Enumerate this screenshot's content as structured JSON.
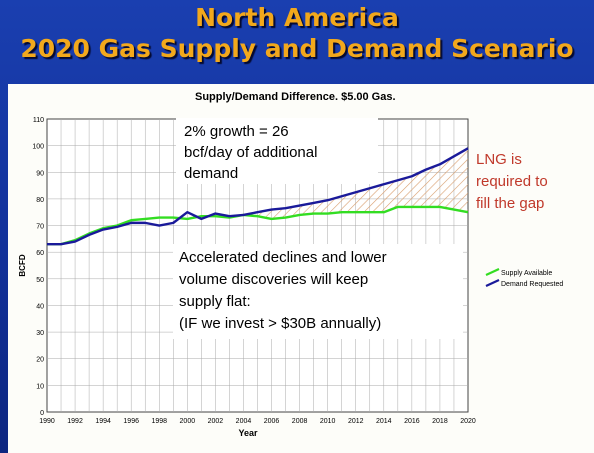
{
  "slide": {
    "title_line1": "North America",
    "title_line2": "2020 Gas Supply and Demand Scenario"
  },
  "annotations": {
    "growth": [
      "2% growth = 26",
      "bcf/day of additional",
      "demand"
    ],
    "decline": [
      "Accelerated declines and lower",
      "volume discoveries will keep",
      "supply flat:",
      "(IF we invest > $30B annually)"
    ],
    "lng": [
      "LNG is",
      "required to",
      "fill the gap"
    ]
  },
  "colors": {
    "supply": "#33dd22",
    "demand": "#1a1a9a",
    "lng_text": "#c0392b",
    "gap_hatch": "#d9a070",
    "title": "#f2a81c"
  },
  "chart_data": {
    "type": "line",
    "title": "Supply/Demand Difference. $5.00 Gas.",
    "xlabel": "Year",
    "ylabel": "BCFD",
    "xlim": [
      1990,
      2020
    ],
    "ylim": [
      0,
      110
    ],
    "xticks": [
      "1990",
      "1992",
      "1994",
      "1996",
      "1998",
      "2000",
      "2002",
      "2004",
      "2006",
      "2008",
      "2010",
      "2012",
      "2014",
      "2016",
      "2018",
      "2020"
    ],
    "yticks": [
      "0",
      "10",
      "20",
      "30",
      "40",
      "50",
      "60",
      "70",
      "80",
      "90",
      "100",
      "110"
    ],
    "grid": true,
    "legend_position": "right",
    "x": [
      1990,
      1991,
      1992,
      1993,
      1994,
      1995,
      1996,
      1997,
      1998,
      1999,
      2000,
      2001,
      2002,
      2003,
      2004,
      2005,
      2006,
      2007,
      2008,
      2009,
      2010,
      2011,
      2012,
      2013,
      2014,
      2015,
      2016,
      2017,
      2018,
      2019,
      2020
    ],
    "series": [
      {
        "name": "Supply Available",
        "values": [
          63,
          63,
          64.5,
          67,
          69,
          70,
          72,
          72.5,
          73,
          73,
          72.5,
          73.5,
          73.5,
          73,
          74,
          73.5,
          72.5,
          73,
          74,
          74.5,
          74.5,
          75,
          75,
          75,
          75,
          77,
          77,
          77,
          77,
          76,
          75
        ]
      },
      {
        "name": "Demand Requested",
        "values": [
          63,
          63,
          64,
          66.5,
          68.5,
          69.5,
          71,
          71,
          70,
          71,
          75,
          72.5,
          74.5,
          73.5,
          74,
          75,
          76,
          76.5,
          77.5,
          78.5,
          79.5,
          81,
          82.5,
          84,
          85.5,
          87,
          88.5,
          91,
          93,
          96,
          99
        ]
      }
    ]
  }
}
